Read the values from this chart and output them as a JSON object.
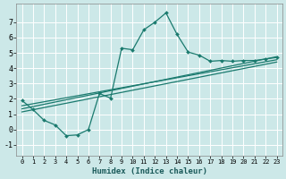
{
  "title": "",
  "xlabel": "Humidex (Indice chaleur)",
  "xlim": [
    -0.5,
    23.5
  ],
  "ylim": [
    -1.7,
    8.2
  ],
  "xticks": [
    0,
    1,
    2,
    3,
    4,
    5,
    6,
    7,
    8,
    9,
    10,
    11,
    12,
    13,
    14,
    15,
    16,
    17,
    18,
    19,
    20,
    21,
    22,
    23
  ],
  "yticks": [
    -1,
    0,
    1,
    2,
    3,
    4,
    5,
    6,
    7
  ],
  "bg_color": "#cce8e8",
  "grid_color": "#ffffff",
  "line_color": "#1a7a6e",
  "line1_x": [
    0,
    1,
    2,
    3,
    4,
    5,
    6,
    7,
    8,
    9,
    10,
    11,
    12,
    13,
    14,
    15,
    16,
    17,
    18,
    19,
    20,
    21,
    22,
    23
  ],
  "line1_y": [
    1.9,
    1.3,
    0.6,
    0.3,
    -0.4,
    -0.35,
    0.0,
    2.35,
    2.05,
    5.3,
    5.2,
    6.5,
    7.0,
    7.6,
    6.2,
    5.05,
    4.85,
    4.45,
    4.5,
    4.45,
    4.5,
    4.5,
    4.6,
    4.7
  ],
  "line2_x": [
    0,
    23
  ],
  "line2_y": [
    1.55,
    4.55
  ],
  "line3_x": [
    0,
    23
  ],
  "line3_y": [
    1.35,
    4.75
  ],
  "line4_x": [
    0,
    23
  ],
  "line4_y": [
    1.15,
    4.4
  ]
}
